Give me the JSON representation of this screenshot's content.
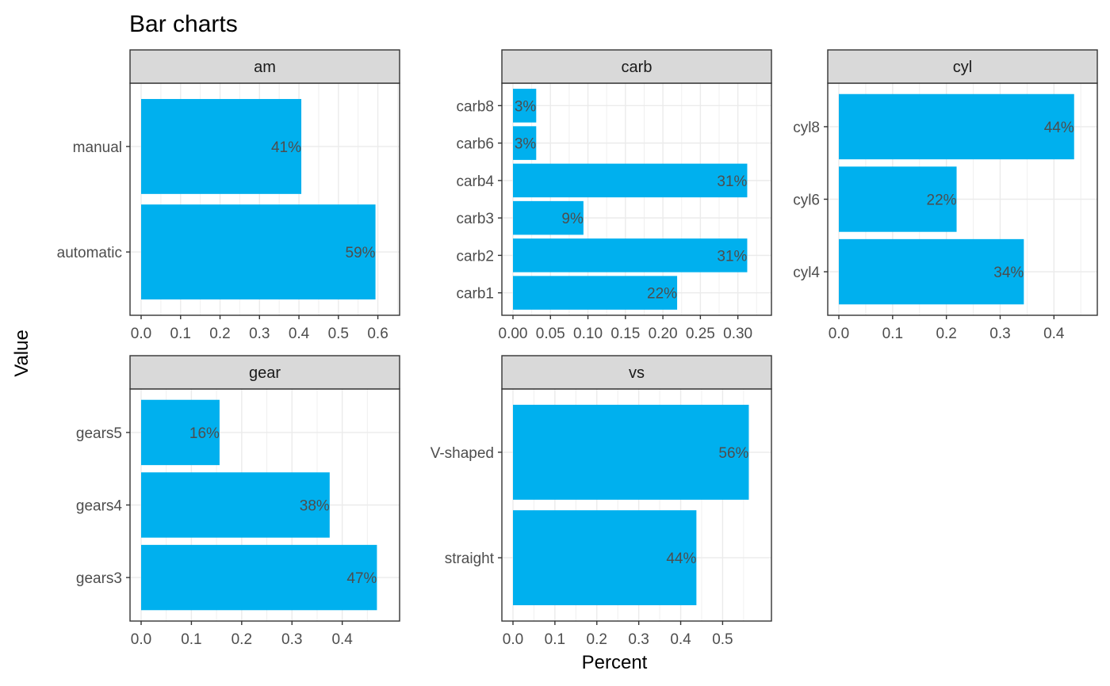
{
  "chart_data": {
    "type": "bar",
    "orientation": "horizontal",
    "title": "Bar charts",
    "xlabel": "Percent",
    "ylabel": "Value",
    "bar_color": "#00B0EE",
    "strip_color": "#D9D9D9",
    "grid": true,
    "facets": [
      {
        "strip": "am",
        "categories": [
          "automatic",
          "manual"
        ],
        "values": [
          0.594,
          0.406
        ],
        "labels": [
          "59%",
          "41%"
        ],
        "xlim": [
          0,
          0.627
        ],
        "ticks": [
          0,
          0.1,
          0.2,
          0.3,
          0.4,
          0.5,
          0.6
        ],
        "tick_labels": [
          "0.0",
          "0.1",
          "0.2",
          "0.3",
          "0.4",
          "0.5",
          "0.6"
        ]
      },
      {
        "strip": "carb",
        "categories": [
          "carb1",
          "carb2",
          "carb3",
          "carb4",
          "carb6",
          "carb8"
        ],
        "values": [
          0.219,
          0.3125,
          0.094,
          0.3125,
          0.031,
          0.031
        ],
        "labels": [
          "22%",
          "31%",
          "9%",
          "31%",
          "3%",
          "3%"
        ],
        "xlim": [
          0,
          0.33
        ],
        "ticks": [
          0,
          0.05,
          0.1,
          0.15,
          0.2,
          0.25,
          0.3
        ],
        "tick_labels": [
          "0.00",
          "0.05",
          "0.10",
          "0.15",
          "0.20",
          "0.25",
          "0.30"
        ]
      },
      {
        "strip": "cyl",
        "categories": [
          "cyl4",
          "cyl6",
          "cyl8"
        ],
        "values": [
          0.344,
          0.219,
          0.4375
        ],
        "labels": [
          "34%",
          "22%",
          "44%"
        ],
        "xlim": [
          0,
          0.46
        ],
        "ticks": [
          0,
          0.1,
          0.2,
          0.3,
          0.4
        ],
        "tick_labels": [
          "0.0",
          "0.1",
          "0.2",
          "0.3",
          "0.4"
        ]
      },
      {
        "strip": "gear",
        "categories": [
          "gears3",
          "gears4",
          "gears5"
        ],
        "values": [
          0.469,
          0.375,
          0.156
        ],
        "labels": [
          "47%",
          "38%",
          "16%"
        ],
        "xlim": [
          0,
          0.492
        ],
        "ticks": [
          0,
          0.1,
          0.2,
          0.3,
          0.4
        ],
        "tick_labels": [
          "0.0",
          "0.1",
          "0.2",
          "0.3",
          "0.4"
        ]
      },
      {
        "strip": "vs",
        "categories": [
          "straight",
          "V-shaped"
        ],
        "values": [
          0.4375,
          0.5625
        ],
        "labels": [
          "44%",
          "56%"
        ],
        "xlim": [
          0,
          0.59
        ],
        "ticks": [
          0,
          0.1,
          0.2,
          0.3,
          0.4,
          0.5
        ],
        "tick_labels": [
          "0.0",
          "0.1",
          "0.2",
          "0.3",
          "0.4",
          "0.5"
        ]
      }
    ]
  }
}
